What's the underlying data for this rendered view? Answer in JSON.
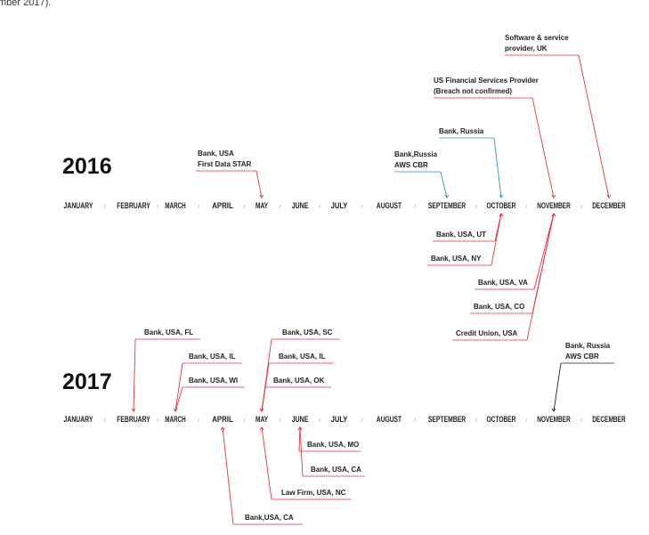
{
  "caption": "mber 2017).",
  "timelines": [
    {
      "year": "2016",
      "months": [
        {
          "name": "JANUARY"
        },
        {
          "name": "FEBRUARY"
        },
        {
          "name": "MARCH"
        },
        {
          "name": "APRIL"
        },
        {
          "name": "MAY",
          "events": [
            {
              "lines": [
                "Bank, USA",
                "First Data STAR"
              ],
              "color": "#e8343f"
            }
          ]
        },
        {
          "name": "JUNE"
        },
        {
          "name": "JULY"
        },
        {
          "name": "AUGUST"
        },
        {
          "name": "SEPTEMBER",
          "events": [
            {
              "lines": [
                "Bank,Russia",
                "AWS CBR"
              ],
              "color": "#2b8fd6"
            }
          ]
        },
        {
          "name": "OCTOBER",
          "events": [
            {
              "lines": [
                "Bank, Russia"
              ],
              "color": "#2b8fd6"
            },
            {
              "lines": [
                "Bank, USA, UT"
              ],
              "color": "#e8343f"
            },
            {
              "lines": [
                "Bank, USA, NY"
              ],
              "color": "#e8343f"
            }
          ]
        },
        {
          "name": "NOVEMBER",
          "events": [
            {
              "lines": [
                "US Financial Services Provider",
                "(Breach not confirmed)"
              ],
              "color": "#e8343f"
            },
            {
              "lines": [
                "Bank, USA, VA"
              ],
              "color": "#e8343f"
            },
            {
              "lines": [
                "Bank, USA, CO"
              ],
              "color": "#e8343f"
            },
            {
              "lines": [
                "Credit Union, USA"
              ],
              "color": "#e8343f"
            }
          ]
        },
        {
          "name": "DECEMBER",
          "events": [
            {
              "lines": [
                "Software & service",
                "provider, UK"
              ],
              "color": "#e8343f"
            }
          ]
        }
      ]
    },
    {
      "year": "2017",
      "months": [
        {
          "name": "JANUARY"
        },
        {
          "name": "FEBRUARY",
          "events": [
            {
              "lines": [
                "Bank, USA, FL"
              ],
              "color": "#e8343f"
            }
          ]
        },
        {
          "name": "MARCH",
          "events": [
            {
              "lines": [
                "Bank, USA, IL"
              ],
              "color": "#e8343f"
            },
            {
              "lines": [
                "Bank, USA, WI"
              ],
              "color": "#e8343f"
            }
          ]
        },
        {
          "name": "APRIL",
          "events": [
            {
              "lines": [
                "Bank,USA, CA"
              ],
              "color": "#e8343f"
            }
          ]
        },
        {
          "name": "MAY",
          "events": [
            {
              "lines": [
                "Bank, USA, SC"
              ],
              "color": "#e8343f"
            },
            {
              "lines": [
                "Bank, USA, IL"
              ],
              "color": "#e8343f"
            },
            {
              "lines": [
                "Bank, USA, OK"
              ],
              "color": "#e8343f"
            },
            {
              "lines": [
                "Law Firm, USA, NC"
              ],
              "color": "#e8343f"
            }
          ]
        },
        {
          "name": "JUNE",
          "events": [
            {
              "lines": [
                "Bank, USA, MO"
              ],
              "color": "#e8343f"
            },
            {
              "lines": [
                "Bank, USA, CA"
              ],
              "color": "#e8343f"
            }
          ]
        },
        {
          "name": "JULY"
        },
        {
          "name": "AUGUST"
        },
        {
          "name": "SEPTEMBER"
        },
        {
          "name": "OCTOBER"
        },
        {
          "name": "NOVEMBER",
          "events": [
            {
              "lines": [
                "Bank, Russia",
                "AWS CBR"
              ],
              "color": "#222222"
            }
          ]
        },
        {
          "name": "DECEMBER"
        }
      ]
    }
  ]
}
